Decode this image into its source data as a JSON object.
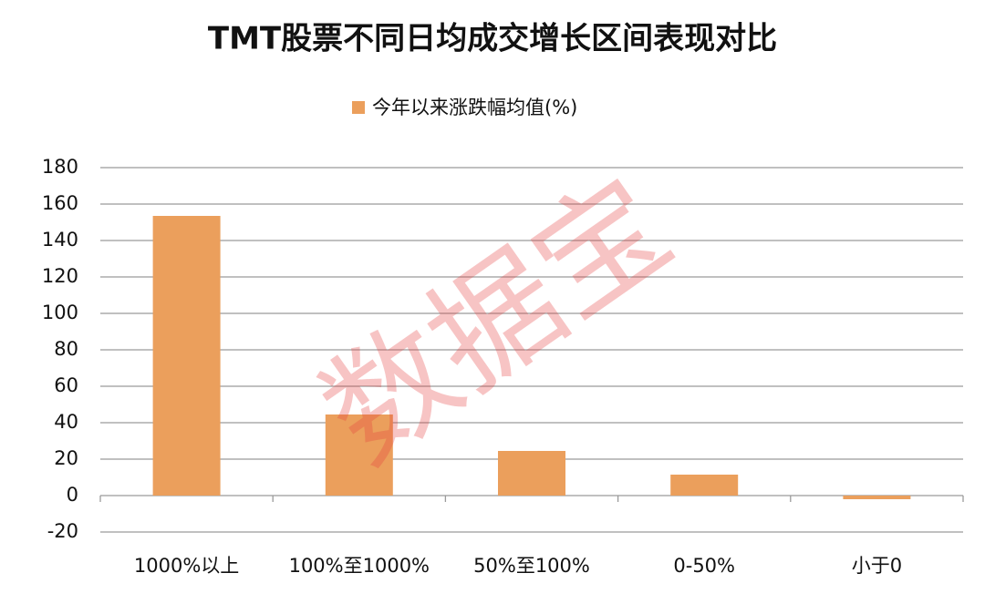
{
  "chart_data": {
    "type": "bar",
    "title": "TMT股票不同日均成交增长区间表现对比",
    "categories": [
      "1000%以上",
      "100%至1000%",
      "50%至100%",
      "0-50%",
      "小于0"
    ],
    "series": [
      {
        "name": "今年以来涨跌幅均值(%)",
        "color": "#eb9f5c",
        "values": [
          153.5,
          44.5,
          24.5,
          11.5,
          -2
        ]
      }
    ],
    "ylim": [
      -20,
      180
    ],
    "yticks": [
      -20,
      0,
      20,
      40,
      60,
      80,
      100,
      120,
      140,
      160,
      180
    ],
    "grid": true,
    "legend": "top",
    "watermark": "数据宝"
  }
}
